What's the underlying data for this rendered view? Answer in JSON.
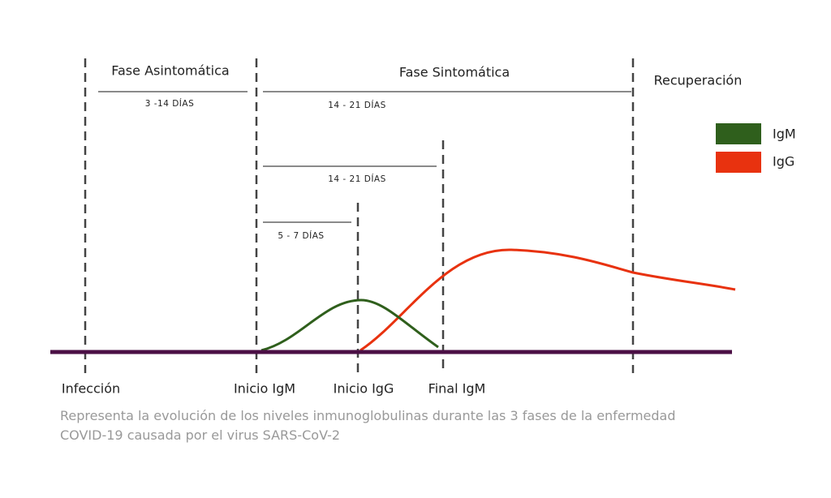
{
  "phases": [
    "Fase Asintomática",
    "Fase Sintomática",
    "Recuperación"
  ],
  "durations": [
    "3 -14 DÍAS",
    "14 - 21 DÍAS",
    "14 - 21 DÍAS",
    "5 - 7 DÍAS"
  ],
  "legend": [
    {
      "label": "IgM",
      "color": "#2f5f1c"
    },
    {
      "label": "IgG",
      "color": "#e8320f"
    }
  ],
  "milestones": [
    "Infección",
    "Inicio IgM",
    "Inicio IgG",
    "Final IgM"
  ],
  "caption": [
    "Representa la evolución de los niveles inmunoglobulinas durante las 3 fases de la enfermedad",
    "COVID-19 causada por el virus SARS-CoV-2"
  ]
}
